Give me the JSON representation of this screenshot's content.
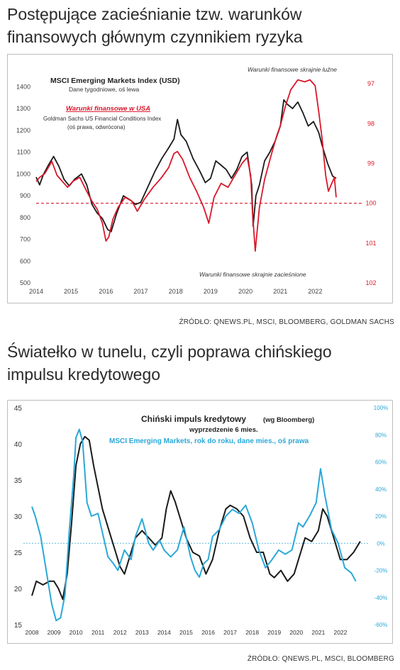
{
  "section1": {
    "heading": "Postępujące zacieśnianie tzw. warunków finansowych głównym czynnikiem ryzyka",
    "source": "ŹRÓDŁO: QNEWS.PL, MSCI, BLOOMBERG, GOLDMAN SACHS"
  },
  "section2": {
    "heading": "Światełko w tunelu, czyli poprawa chińskiego impulsu kredytowego",
    "source": "ŹRÓDŁO: QNEWS.PL, MSCI, BLOOMBERG"
  },
  "colors": {
    "black_series": "#1a1a1a",
    "red_series": "#d9182a",
    "blue_series": "#2aa8d8"
  },
  "chart_data": [
    {
      "type": "line",
      "title": "MSCI Emerging Markets Index (USD)",
      "subtitle": "Dane tygodniowe, oś lewa",
      "legend": {
        "red_label": "Warunki finansowe w USA",
        "red_sub1": "Goldman Sachs US Financial Conditions Index",
        "red_sub2": "(oś prawa, odwrócona)"
      },
      "annotations": {
        "top": "Warunki finansowe skrajnie luźne",
        "bottom": "Warunki finansowe skrajnie zacieśnione"
      },
      "x_ticks": [
        "2014",
        "2015",
        "2016",
        "2017",
        "2018",
        "2019",
        "2020",
        "2021",
        "2022"
      ],
      "y_left_ticks": [
        "1400",
        "1300",
        "1200",
        "1100",
        "1000",
        "900",
        "800",
        "700",
        "600",
        "500"
      ],
      "y_right_ticks": [
        "97",
        "98",
        "99",
        "100",
        "101",
        "102"
      ],
      "xlim": [
        2014.0,
        2023.15
      ],
      "ylim_left": [
        500,
        1450
      ],
      "ylim_right_inverted": [
        102,
        96.8
      ],
      "reference_line_right": 100,
      "series": [
        {
          "axis": "left",
          "x": [
            2014.0,
            2014.1,
            2014.2,
            2014.35,
            2014.5,
            2014.65,
            2014.8,
            2014.95,
            2015.1,
            2015.3,
            2015.45,
            2015.6,
            2015.75,
            2015.9,
            2016.05,
            2016.15,
            2016.3,
            2016.5,
            2016.7,
            2016.85,
            2017.0,
            2017.2,
            2017.4,
            2017.6,
            2017.8,
            2017.95,
            2018.05,
            2018.15,
            2018.3,
            2018.5,
            2018.7,
            2018.85,
            2019.0,
            2019.15,
            2019.3,
            2019.45,
            2019.6,
            2019.75,
            2019.9,
            2020.05,
            2020.18,
            2020.22,
            2020.3,
            2020.4,
            2020.55,
            2020.7,
            2020.85,
            2021.0,
            2021.1,
            2021.2,
            2021.35,
            2021.5,
            2021.65,
            2021.8,
            2021.95,
            2022.1,
            2022.2,
            2022.35,
            2022.5,
            2022.6
          ],
          "y": [
            985,
            950,
            995,
            1040,
            1080,
            1035,
            975,
            945,
            975,
            1000,
            950,
            860,
            820,
            795,
            745,
            735,
            815,
            900,
            880,
            860,
            870,
            940,
            1010,
            1070,
            1120,
            1160,
            1250,
            1180,
            1150,
            1070,
            1010,
            960,
            980,
            1060,
            1040,
            1020,
            980,
            1020,
            1080,
            1100,
            950,
            760,
            900,
            950,
            1060,
            1100,
            1150,
            1220,
            1340,
            1320,
            1300,
            1330,
            1280,
            1220,
            1240,
            1190,
            1130,
            1050,
            990,
            980
          ]
        },
        {
          "axis": "right",
          "x": [
            2014.0,
            2014.1,
            2014.25,
            2014.45,
            2014.6,
            2014.75,
            2014.9,
            2015.05,
            2015.25,
            2015.45,
            2015.6,
            2015.75,
            2015.9,
            2016.0,
            2016.08,
            2016.2,
            2016.35,
            2016.55,
            2016.75,
            2016.9,
            2017.1,
            2017.35,
            2017.6,
            2017.8,
            2017.95,
            2018.05,
            2018.2,
            2018.4,
            2018.6,
            2018.8,
            2018.95,
            2019.1,
            2019.3,
            2019.5,
            2019.7,
            2019.9,
            2020.05,
            2020.15,
            2020.2,
            2020.28,
            2020.4,
            2020.55,
            2020.75,
            2020.9,
            2021.0,
            2021.15,
            2021.3,
            2021.5,
            2021.7,
            2021.85,
            2022.0,
            2022.1,
            2022.2,
            2022.3,
            2022.38,
            2022.45,
            2022.55,
            2022.6
          ],
          "y": [
            99.45,
            99.35,
            99.25,
            98.95,
            99.3,
            99.45,
            99.6,
            99.45,
            99.35,
            99.7,
            99.95,
            100.15,
            100.5,
            100.95,
            100.85,
            100.4,
            100.1,
            99.85,
            99.95,
            100.2,
            99.9,
            99.6,
            99.35,
            99.1,
            98.75,
            98.7,
            98.9,
            99.35,
            99.7,
            100.1,
            100.5,
            99.85,
            99.5,
            99.6,
            99.3,
            99.0,
            98.85,
            99.3,
            100.2,
            101.2,
            100.1,
            99.4,
            98.75,
            98.3,
            98.05,
            97.55,
            97.15,
            96.9,
            96.95,
            96.9,
            97.05,
            97.7,
            98.4,
            99.3,
            99.7,
            99.55,
            99.35,
            99.85
          ]
        }
      ]
    },
    {
      "type": "line",
      "title": "Chiński impuls kredytowy",
      "title_suffix": "(wg Bloomberg)",
      "subtitle": "wyprzedzenie 6 mies.",
      "series_label_blue": "MSCI Emerging Markets, rok do roku, dane mies., oś prawa",
      "x_ticks": [
        "2008",
        "2009",
        "2010",
        "2011",
        "2012",
        "2013",
        "2014",
        "2015",
        "2016",
        "2017",
        "2018",
        "2019",
        "2020",
        "2021",
        "2022"
      ],
      "y_left_ticks": [
        "45",
        "40",
        "35",
        "30",
        "25",
        "20",
        "15"
      ],
      "y_right_ticks": [
        "100%",
        "80%",
        "60%",
        "40%",
        "20%",
        "0%",
        "-20%",
        "-40%",
        "-60%"
      ],
      "xlim": [
        2008.0,
        2023.0
      ],
      "ylim_left": [
        15,
        45
      ],
      "ylim_right": [
        -60,
        100
      ],
      "reference_line_right": 0,
      "series": [
        {
          "axis": "left",
          "x": [
            2008.0,
            2008.2,
            2008.5,
            2008.8,
            2009.0,
            2009.2,
            2009.4,
            2009.6,
            2009.8,
            2010.0,
            2010.2,
            2010.4,
            2010.6,
            2010.8,
            2011.0,
            2011.2,
            2011.4,
            2011.6,
            2011.8,
            2012.0,
            2012.2,
            2012.4,
            2012.7,
            2013.0,
            2013.3,
            2013.6,
            2013.9,
            2014.1,
            2014.3,
            2014.5,
            2014.8,
            2015.0,
            2015.3,
            2015.6,
            2015.9,
            2016.2,
            2016.5,
            2016.8,
            2017.0,
            2017.3,
            2017.6,
            2017.9,
            2018.2,
            2018.5,
            2018.8,
            2019.0,
            2019.3,
            2019.6,
            2019.9,
            2020.1,
            2020.4,
            2020.7,
            2021.0,
            2021.2,
            2021.4,
            2021.7,
            2022.0,
            2022.3,
            2022.6,
            2022.9
          ],
          "y": [
            19,
            21,
            20.5,
            21,
            21,
            20,
            18.5,
            22,
            29,
            37,
            40,
            41,
            40.5,
            37,
            34,
            31,
            29,
            27,
            25,
            23,
            22,
            24,
            27,
            28,
            27,
            26,
            27,
            31,
            33.5,
            32,
            29,
            27,
            25,
            24.5,
            22,
            24,
            28,
            31,
            31.5,
            31,
            30,
            27,
            25,
            25,
            22,
            21.5,
            22.5,
            21,
            22,
            24,
            27,
            26.5,
            28,
            31,
            30,
            27,
            24,
            24,
            25,
            26.5
          ]
        },
        {
          "axis": "right",
          "x": [
            2008.0,
            2008.15,
            2008.4,
            2008.7,
            2008.9,
            2009.1,
            2009.3,
            2009.5,
            2009.7,
            2009.9,
            2010.0,
            2010.15,
            2010.3,
            2010.5,
            2010.7,
            2011.0,
            2011.2,
            2011.45,
            2011.7,
            2011.9,
            2012.2,
            2012.5,
            2012.7,
            2013.0,
            2013.3,
            2013.5,
            2013.8,
            2014.0,
            2014.3,
            2014.6,
            2014.9,
            2015.2,
            2015.4,
            2015.6,
            2015.8,
            2016.0,
            2016.2,
            2016.5,
            2016.8,
            2017.1,
            2017.4,
            2017.7,
            2018.0,
            2018.3,
            2018.6,
            2018.9,
            2019.2,
            2019.5,
            2019.8,
            2020.1,
            2020.3,
            2020.6,
            2020.9,
            2021.1,
            2021.3,
            2021.6,
            2021.9,
            2022.2,
            2022.5,
            2022.7
          ],
          "y": [
            27,
            20,
            5,
            -25,
            -45,
            -57,
            -55,
            -38,
            10,
            50,
            78,
            84,
            75,
            30,
            20,
            22,
            8,
            -10,
            -15,
            -20,
            -5,
            -12,
            5,
            18,
            0,
            -5,
            2,
            -5,
            -10,
            -5,
            12,
            -10,
            -20,
            -25,
            -15,
            -12,
            5,
            10,
            20,
            25,
            22,
            28,
            15,
            -5,
            -18,
            -12,
            -5,
            -8,
            -5,
            15,
            12,
            20,
            30,
            55,
            35,
            10,
            0,
            -18,
            -22,
            -28
          ]
        }
      ]
    }
  ]
}
